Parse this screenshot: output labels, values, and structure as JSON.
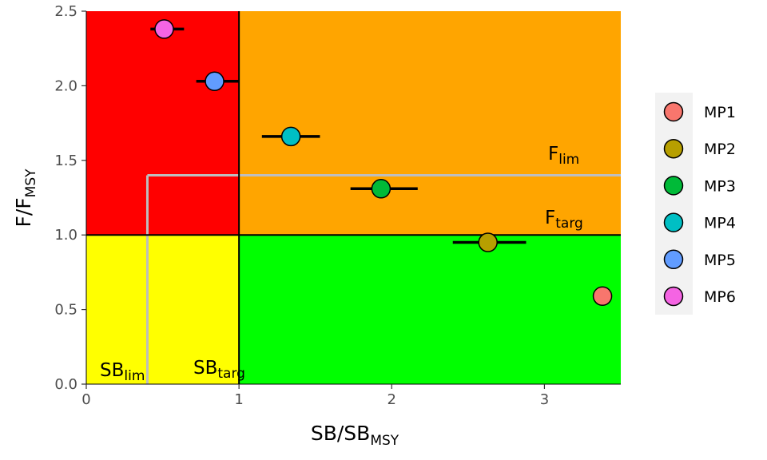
{
  "chart_data": {
    "type": "scatter",
    "xlabel": {
      "main": "SB/SB",
      "sub": "MSY"
    },
    "ylabel": {
      "main": "F/F",
      "sub": "MSY"
    },
    "xlim": [
      0,
      3.5
    ],
    "ylim": [
      0,
      2.5
    ],
    "x_ticks": [
      {
        "value": 0,
        "label": "0"
      },
      {
        "value": 1,
        "label": "1"
      },
      {
        "value": 2,
        "label": "2"
      },
      {
        "value": 3,
        "label": "3"
      }
    ],
    "y_ticks": [
      {
        "value": 0,
        "label": "0.0"
      },
      {
        "value": 0.5,
        "label": "0.5"
      },
      {
        "value": 1,
        "label": "1.0"
      },
      {
        "value": 1.5,
        "label": "1.5"
      },
      {
        "value": 2,
        "label": "2.0"
      },
      {
        "value": 2.5,
        "label": "2.5"
      }
    ],
    "zones": [
      {
        "name": "red",
        "x": [
          0,
          1
        ],
        "y": [
          1,
          2.5
        ],
        "color": "#ff0000"
      },
      {
        "name": "orange",
        "x": [
          1,
          3.5
        ],
        "y": [
          1,
          2.5
        ],
        "color": "#ffa500"
      },
      {
        "name": "yellow",
        "x": [
          0,
          1
        ],
        "y": [
          0,
          1
        ],
        "color": "#ffff00"
      },
      {
        "name": "green",
        "x": [
          1,
          3.5
        ],
        "y": [
          0,
          1
        ],
        "color": "#00ff00"
      }
    ],
    "reference_lines": {
      "sb_lim": {
        "value": 0.4,
        "label": "SB",
        "sub": "lim",
        "color": "#bebebe"
      },
      "sb_targ": {
        "value": 1.0,
        "label": "SB",
        "sub": "targ",
        "color": "#000000"
      },
      "f_lim": {
        "value": 1.4,
        "label": "F",
        "sub": "lim",
        "color": "#bebebe"
      },
      "f_targ": {
        "value": 1.0,
        "label": "F",
        "sub": "targ",
        "color": "#000000"
      }
    },
    "series": [
      {
        "name": "MP1",
        "x": 3.38,
        "y": 0.59,
        "xmin": 3.38,
        "xmax": 3.38,
        "color": "#F8766D"
      },
      {
        "name": "MP2",
        "x": 2.63,
        "y": 0.95,
        "xmin": 2.4,
        "xmax": 2.88,
        "color": "#B79F00"
      },
      {
        "name": "MP3",
        "x": 1.93,
        "y": 1.31,
        "xmin": 1.73,
        "xmax": 2.17,
        "color": "#00BA38"
      },
      {
        "name": "MP4",
        "x": 1.34,
        "y": 1.66,
        "xmin": 1.15,
        "xmax": 1.53,
        "color": "#00BFC4"
      },
      {
        "name": "MP5",
        "x": 0.84,
        "y": 2.03,
        "xmin": 0.72,
        "xmax": 1.0,
        "color": "#619CFF"
      },
      {
        "name": "MP6",
        "x": 0.51,
        "y": 2.38,
        "xmin": 0.42,
        "xmax": 0.64,
        "color": "#F564E3"
      }
    ],
    "grid": false,
    "legend_position": "right"
  }
}
